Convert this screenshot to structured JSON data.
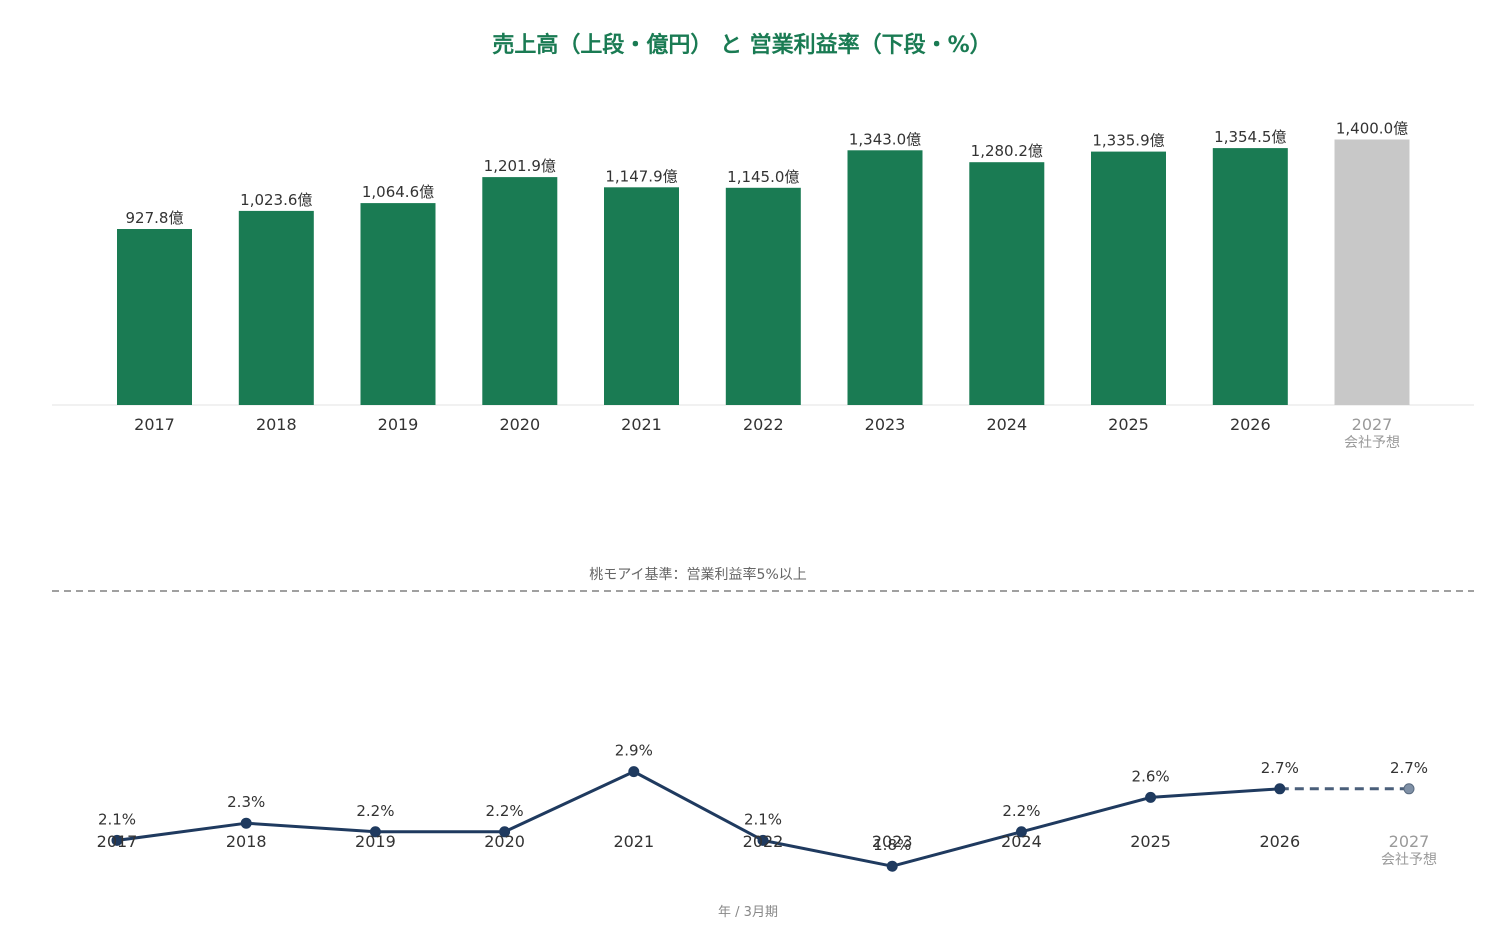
{
  "title": "売上高（上段・億円） と 営業利益率（下段・%）",
  "footer_label": "年 / 3月期",
  "chart_data": [
    {
      "type": "bar",
      "categories": [
        "2017",
        "2018",
        "2019",
        "2020",
        "2021",
        "2022",
        "2023",
        "2024",
        "2025",
        "2026",
        "2027"
      ],
      "values": [
        927.8,
        1023.6,
        1064.6,
        1201.9,
        1147.9,
        1145.0,
        1343.0,
        1280.2,
        1335.9,
        1354.5,
        1400.0
      ],
      "data_labels": [
        "927.8億",
        "1,023.6億",
        "1,064.6億",
        "1,201.9億",
        "1,147.9億",
        "1,145.0億",
        "1,343.0億",
        "1,280.2億",
        "1,335.9億",
        "1,354.5億",
        "1,400.0億"
      ],
      "forecast_index": 10,
      "forecast_note": "会社予想",
      "ylim": [
        0,
        1450
      ],
      "colors": {
        "actual": "#1a7b53",
        "forecast": "#c8c8c8"
      },
      "grid": false
    },
    {
      "type": "line",
      "categories": [
        "2017",
        "2018",
        "2019",
        "2020",
        "2021",
        "2022",
        "2023",
        "2024",
        "2025",
        "2026",
        "2027"
      ],
      "values": [
        2.1,
        2.3,
        2.2,
        2.2,
        2.9,
        2.1,
        1.8,
        2.2,
        2.6,
        2.7,
        2.7
      ],
      "data_labels": [
        "2.1%",
        "2.3%",
        "2.2%",
        "2.2%",
        "2.9%",
        "2.1%",
        "1.8%",
        "2.2%",
        "2.6%",
        "2.7%",
        "2.7%"
      ],
      "forecast_index": 10,
      "forecast_note": "会社予想",
      "ylim": [
        1.0,
        5.0
      ],
      "threshold": {
        "value": 5.0,
        "label": "桃モアイ基準：営業利益率5%以上",
        "style": "dashed",
        "color": "#a0a0a0"
      },
      "colors": {
        "line": "#1f3a5f",
        "forecast_point": "#7f90a6"
      },
      "grid": false
    }
  ]
}
